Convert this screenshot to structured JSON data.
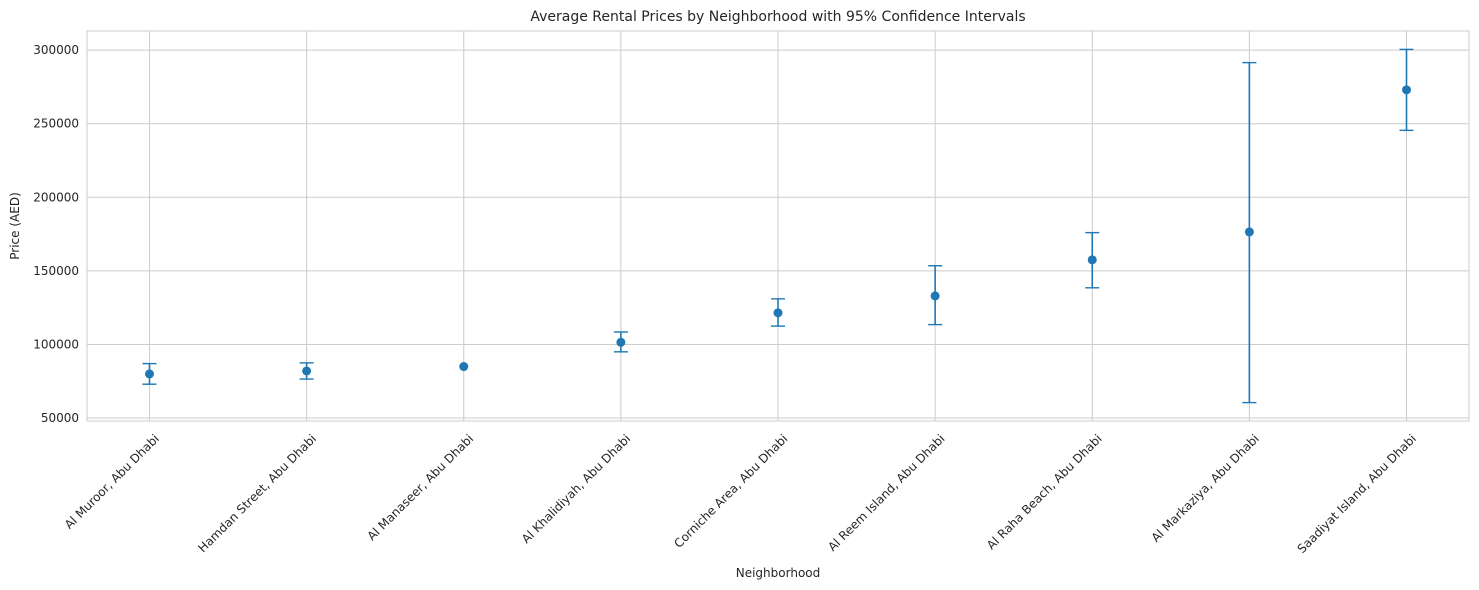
{
  "chart_data": {
    "type": "scatter",
    "title": "Average Rental Prices by Neighborhood with 95% Confidence Intervals",
    "xlabel": "Neighborhood",
    "ylabel": "Price (AED)",
    "categories": [
      "Al Muroor, Abu Dhabi",
      "Hamdan Street, Abu Dhabi",
      "Al Manaseer, Abu Dhabi",
      "Al Khalidiyah, Abu Dhabi",
      "Corniche Area, Abu Dhabi",
      "Al Reem Island, Abu Dhabi",
      "Al Raha Beach, Abu Dhabi",
      "Al Markaziya, Abu Dhabi",
      "Saadiyat Island, Abu Dhabi"
    ],
    "values": [
      80000,
      82000,
      85000,
      101500,
      121500,
      133000,
      157500,
      176500,
      273000
    ],
    "ci_low": [
      73000,
      76500,
      85000,
      95000,
      112500,
      113500,
      138500,
      60500,
      245500
    ],
    "ci_high": [
      87000,
      87500,
      85000,
      108500,
      131000,
      153500,
      176000,
      291500,
      300500
    ],
    "ylim": [
      48000,
      313000
    ],
    "yticks": [
      50000,
      100000,
      150000,
      200000,
      250000,
      300000
    ],
    "grid": true,
    "color": "#1f77b4",
    "grid_color": "#cccccc",
    "axis_color": "#cccccc",
    "text_color": "#262626"
  }
}
